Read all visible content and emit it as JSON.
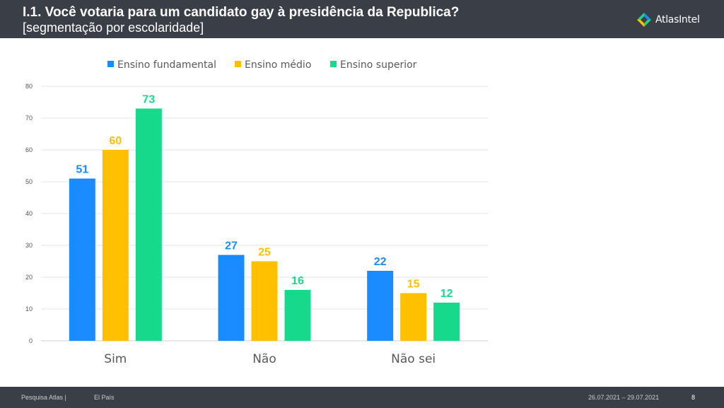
{
  "header": {
    "title": "I.1. Você votaria para um candidato gay à presidência da Republica?",
    "subtitle": "[segmentação por escolaridade]",
    "logo_text": "AtlasIntel"
  },
  "footer": {
    "source": "Pesquisa Atlas  |",
    "client": "El País",
    "date_range": "26.07.2021 – 29.07.2021",
    "page_number": "8"
  },
  "chart_data": {
    "type": "bar",
    "categories": [
      "Sim",
      "Não",
      "Não sei"
    ],
    "series": [
      {
        "name": "Ensino fundamental",
        "values": [
          51,
          27,
          22
        ],
        "color": "#1a8cff"
      },
      {
        "name": "Ensino médio",
        "values": [
          60,
          25,
          15
        ],
        "color": "#ffc000"
      },
      {
        "name": "Ensino superior",
        "values": [
          73,
          16,
          12
        ],
        "color": "#17d98b"
      }
    ],
    "ylim": [
      0,
      80
    ],
    "yticks": [
      0,
      10,
      20,
      30,
      40,
      50,
      60,
      70,
      80
    ],
    "grid": true,
    "legend": "top",
    "data_labels": true
  }
}
